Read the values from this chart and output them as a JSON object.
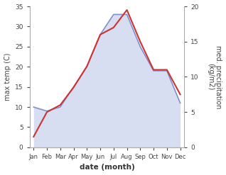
{
  "months": [
    "Jan",
    "Feb",
    "Mar",
    "Apr",
    "May",
    "Jun",
    "Jul",
    "Aug",
    "Sep",
    "Oct",
    "Nov",
    "Dec"
  ],
  "month_indices": [
    0,
    1,
    2,
    3,
    4,
    5,
    6,
    7,
    8,
    9,
    10,
    11
  ],
  "temperature": [
    10,
    9,
    10,
    15,
    20,
    28,
    33,
    33,
    25,
    19,
    19,
    11
  ],
  "precipitation": [
    1.5,
    5,
    6,
    8.5,
    11.5,
    16,
    17,
    19.5,
    15,
    11,
    11,
    7.5
  ],
  "temp_ylim": [
    0,
    35
  ],
  "precip_ylim": [
    0,
    20
  ],
  "temp_yticks": [
    0,
    5,
    10,
    15,
    20,
    25,
    30,
    35
  ],
  "precip_yticks": [
    0,
    5,
    10,
    15,
    20
  ],
  "temp_color_fill": "#b8c4e8",
  "temp_color_line": "#8090c8",
  "precip_color_line": "#cc3333",
  "xlabel": "date (month)",
  "ylabel_left": "max temp (C)",
  "ylabel_right": "med. precipitation\n(kg/m2)",
  "fill_alpha": 0.55,
  "background_color": "#ffffff"
}
